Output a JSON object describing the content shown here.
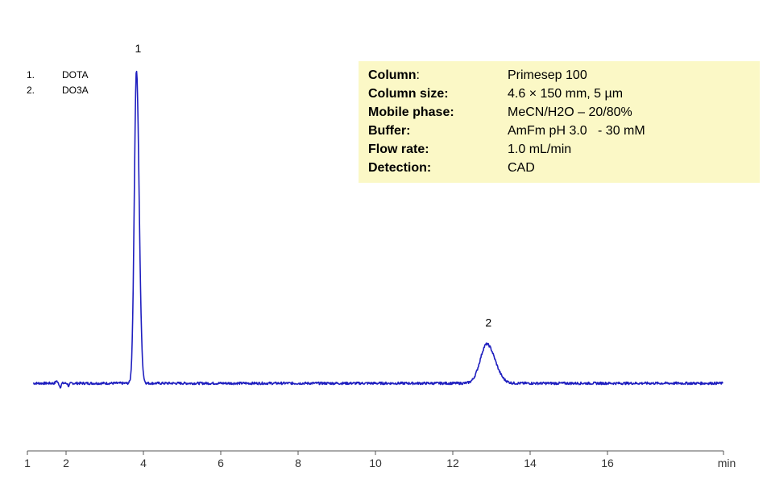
{
  "legend": [
    {
      "num": "1.",
      "name": "DOTA"
    },
    {
      "num": "2.",
      "name": "DO3A"
    }
  ],
  "info": [
    {
      "label": "Column",
      "colon": ":",
      "value": "Primesep 100"
    },
    {
      "label": "Column size:",
      "colon": "",
      "value": "4.6 × 150 mm, 5 µm"
    },
    {
      "label": "Mobile phase:",
      "colon": "",
      "value": "MeCN/H2O – 20/80%"
    },
    {
      "label": "Buffer:",
      "colon": "",
      "value": "AmFm pH 3.0   - 30 mM"
    },
    {
      "label": "Flow rate:",
      "colon": "",
      "value": "1.0 mL/min"
    },
    {
      "label": "Detection:",
      "colon": "",
      "value": "CAD"
    }
  ],
  "chart_data": {
    "type": "line",
    "xlabel": "min",
    "ylabel": "",
    "xlim": [
      1,
      19
    ],
    "ylim": [
      -0.1,
      1.0
    ],
    "xticks": [
      1,
      2,
      4,
      6,
      8,
      10,
      12,
      14,
      16
    ],
    "grid": false,
    "line_color": "#1f1fbf",
    "baseline": 0,
    "peaks": [
      {
        "label": "1",
        "time": 3.82,
        "height": 1.0,
        "width": 0.055
      },
      {
        "label": "2",
        "time": 12.88,
        "height": 0.125,
        "width": 0.17
      }
    ],
    "disturbances": [
      {
        "time": 1.75,
        "amplitude": 0.008
      },
      {
        "time": 1.85,
        "amplitude": -0.012
      },
      {
        "time": 2.07,
        "amplitude": -0.009
      }
    ]
  }
}
